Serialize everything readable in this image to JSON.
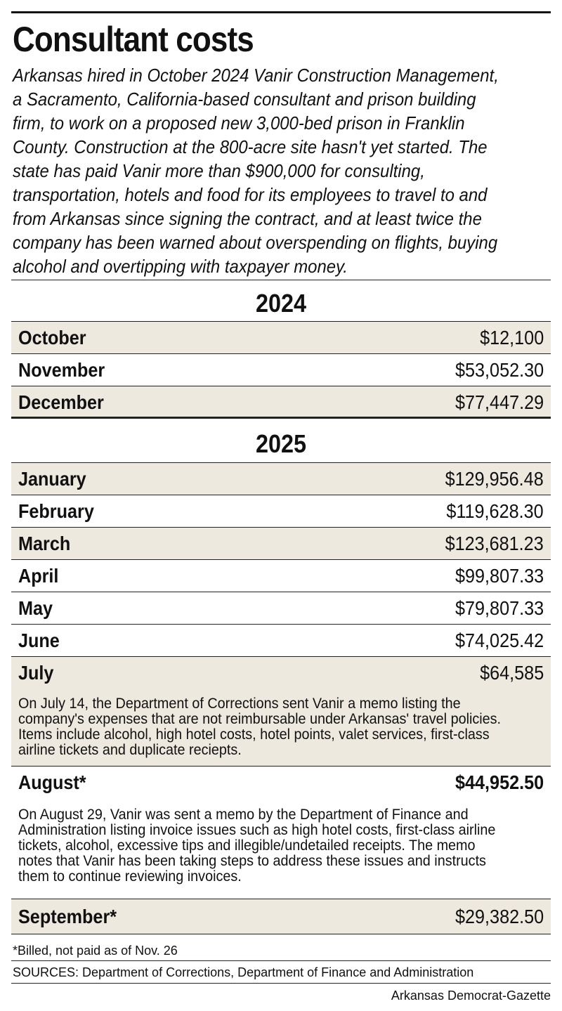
{
  "title": "Consultant costs",
  "intro": "Arkansas hired in October 2024 Vanir Construction Management, a Sacramento, California-based consultant and prison building firm, to work on a proposed new 3,000-bed prison in Franklin County. Construction at the 800-acre site hasn't yet started. The state has paid Vanir more than $900,000 for consulting, transportation, hotels and food for its employees to travel to and from Arkansas since signing the contract, and at least twice the company has been warned about overspending on flights, buying alcohol and overtipping with taxpayer money.",
  "years": [
    {
      "year": "2024",
      "rows": [
        {
          "month": "October",
          "amount": "$12,100"
        },
        {
          "month": "November",
          "amount": "$53,052.30"
        },
        {
          "month": "December",
          "amount": "$77,447.29"
        }
      ]
    },
    {
      "year": "2025",
      "rows": [
        {
          "month": "January",
          "amount": "$129,956.48"
        },
        {
          "month": "February",
          "amount": "$119,628.30"
        },
        {
          "month": "March",
          "amount": "$123,681.23"
        },
        {
          "month": "April",
          "amount": "$99,807.33"
        },
        {
          "month": "May",
          "amount": "$79,807.33"
        },
        {
          "month": "June",
          "amount": "$74,025.42"
        },
        {
          "month": "July",
          "amount": "$64,585",
          "note": "On July 14, the Department of Corrections sent Vanir a memo listing the company's expenses that are not reimbursable under Arkansas' travel policies. Items include alcohol, high hotel costs, hotel points, valet services, first-class airline tickets and duplicate reciepts."
        },
        {
          "month": "August*",
          "amount": "$44,952.50",
          "note": "On August 29, Vanir was sent a memo by the Department of Finance and Administration listing invoice issues such as high hotel costs, first-class airline tickets, alcohol, excessive tips and illegible/undetailed receipts. The memo notes that Vanir has been taking steps to address these issues and instructs them to continue reviewing invoices."
        },
        {
          "month": "September*",
          "amount": "$29,382.50"
        }
      ]
    }
  ],
  "footnote": "*Billed, not paid as of Nov. 26",
  "sources": "SOURCES: Department of Corrections, Department of Finance and Administration",
  "credit": "Arkansas Democrat-Gazette",
  "colors": {
    "row_shade": "#ede9df",
    "text": "#111111"
  }
}
